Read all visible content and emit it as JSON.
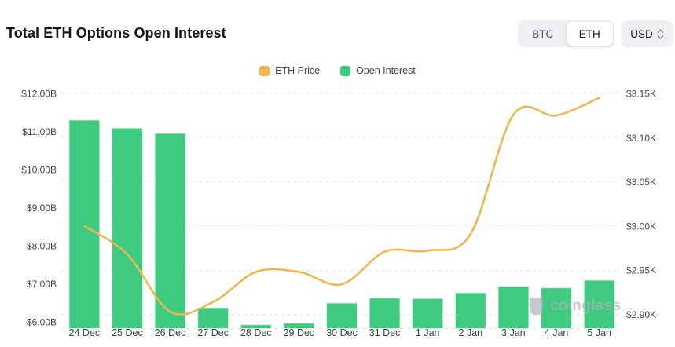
{
  "header": {
    "title": "Total ETH Options Open Interest",
    "asset_toggle": {
      "options": [
        "BTC",
        "ETH"
      ],
      "selected": "ETH"
    },
    "currency_select": {
      "value": "USD"
    }
  },
  "legend": {
    "items": [
      {
        "label": "ETH Price",
        "color": "#eeb54e"
      },
      {
        "label": "Open Interest",
        "color": "#3ecb80"
      }
    ]
  },
  "watermark": {
    "brand": "coinglass"
  },
  "chart_data": {
    "type": "bar+line",
    "categories": [
      "24 Dec",
      "25 Dec",
      "26 Dec",
      "27 Dec",
      "28 Dec",
      "29 Dec",
      "30 Dec",
      "31 Dec",
      "1 Jan",
      "2 Jan",
      "3 Jan",
      "4 Jan",
      "5 Jan"
    ],
    "series": [
      {
        "name": "Open Interest",
        "type": "bar",
        "axis": "left",
        "color": "#3ecb80",
        "unit": "USD billions",
        "values": [
          11.3,
          11.09,
          10.95,
          6.37,
          5.92,
          5.96,
          6.49,
          6.62,
          6.61,
          6.76,
          6.93,
          6.89,
          7.09
        ]
      },
      {
        "name": "ETH Price",
        "type": "line",
        "axis": "right",
        "color": "#eeb54e",
        "unit": "USD thousands",
        "values": [
          3.0,
          2.968,
          2.903,
          2.914,
          2.948,
          2.948,
          2.934,
          2.971,
          2.972,
          2.991,
          3.126,
          3.125,
          3.145
        ]
      }
    ],
    "left_axis": {
      "tick_labels": [
        "$12.00B",
        "$11.00B",
        "$10.00B",
        "$9.00B",
        "$8.00B",
        "$7.00B",
        "$6.00B"
      ],
      "tick_values": [
        12,
        11,
        10,
        9,
        8,
        7,
        6
      ],
      "min": 5.82,
      "max": 12
    },
    "right_axis": {
      "tick_labels": [
        "$3.15K",
        "$3.10K",
        "$3.05K",
        "$3.00K",
        "$2.95K",
        "$2.90K"
      ],
      "tick_values": [
        3.15,
        3.1,
        3.05,
        3.0,
        2.95,
        2.9
      ],
      "min": 2.884,
      "max": 3.15
    },
    "grid": {
      "horizontal_dashed": true,
      "gridlines_follow": "right_axis",
      "legend_position": "top-center"
    }
  }
}
